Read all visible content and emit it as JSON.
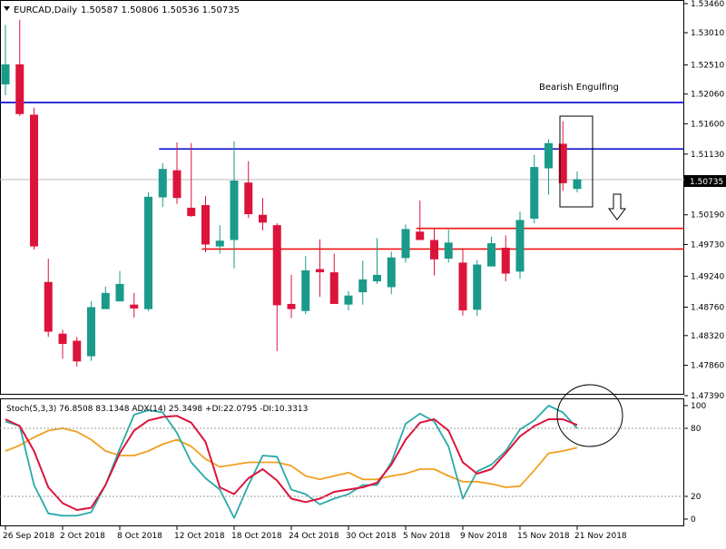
{
  "header": {
    "symbol_info": "EURCAD,Daily",
    "ohlc": "1.50587 1.50806 1.50536 1.50735"
  },
  "indicator_header": "Stoch(5,3,3) 76.8508 83.1348  ADX(14) 25.3498 +DI:22.0795 -DI:10.3313",
  "annotation_text": "Bearish Engulfing",
  "current_price_label": "1.50735",
  "colors": {
    "bull": "#1a9a8a",
    "bear": "#dc143c",
    "resistance": "#0000cc",
    "support": "#ee1111",
    "stoch_main": "#dc143c",
    "stoch_signal": "#2aaaaa",
    "adx": "#f0a020",
    "axis": "#000000",
    "grid_level": "#999999"
  },
  "chart_data": [
    {
      "type": "candlestick",
      "price_ticks": [
        "1.53460",
        "1.53010",
        "1.52510",
        "1.52060",
        "1.51600",
        "1.51130",
        "1.50735",
        "1.50190",
        "1.49730",
        "1.49240",
        "1.48760",
        "1.48320",
        "1.47860",
        "1.47390"
      ],
      "price_tick_values": [
        1.5346,
        1.5301,
        1.5251,
        1.5206,
        1.516,
        1.5113,
        1.50735,
        1.5019,
        1.4973,
        1.4924,
        1.4876,
        1.4832,
        1.4786,
        1.4739
      ],
      "ylim": [
        1.4739,
        1.5346
      ],
      "date_labels": [
        {
          "index": 0,
          "text": "26 Sep 2018"
        },
        {
          "index": 4,
          "text": "2 Oct 2018"
        },
        {
          "index": 8,
          "text": "8 Oct 2018"
        },
        {
          "index": 12,
          "text": "12 Oct 2018"
        },
        {
          "index": 16,
          "text": "18 Oct 2018"
        },
        {
          "index": 20,
          "text": "24 Oct 2018"
        },
        {
          "index": 24,
          "text": "30 Oct 2018"
        },
        {
          "index": 28,
          "text": "5 Nov 2018"
        },
        {
          "index": 32,
          "text": "9 Nov 2018"
        },
        {
          "index": 36,
          "text": "15 Nov 2018"
        },
        {
          "index": 40,
          "text": "21 Nov 2018"
        }
      ],
      "candles": [
        {
          "o": 1.5221,
          "h": 1.5313,
          "l": 1.5204,
          "c": 1.5252
        },
        {
          "o": 1.5252,
          "h": 1.5321,
          "l": 1.5172,
          "c": 1.5175
        },
        {
          "o": 1.5174,
          "h": 1.5185,
          "l": 1.4965,
          "c": 1.497
        },
        {
          "o": 1.4915,
          "h": 1.4951,
          "l": 1.483,
          "c": 1.4838
        },
        {
          "o": 1.4835,
          "h": 1.4841,
          "l": 1.4796,
          "c": 1.4819
        },
        {
          "o": 1.4824,
          "h": 1.483,
          "l": 1.4784,
          "c": 1.4792
        },
        {
          "o": 1.48,
          "h": 1.4885,
          "l": 1.4793,
          "c": 1.4876
        },
        {
          "o": 1.4873,
          "h": 1.4908,
          "l": 1.4873,
          "c": 1.4898
        },
        {
          "o": 1.4885,
          "h": 1.4932,
          "l": 1.4885,
          "c": 1.4912
        },
        {
          "o": 1.488,
          "h": 1.4898,
          "l": 1.486,
          "c": 1.4874
        },
        {
          "o": 1.4873,
          "h": 1.5054,
          "l": 1.487,
          "c": 1.5047
        },
        {
          "o": 1.5046,
          "h": 1.5099,
          "l": 1.5031,
          "c": 1.509
        },
        {
          "o": 1.5088,
          "h": 1.5131,
          "l": 1.5036,
          "c": 1.5045
        },
        {
          "o": 1.503,
          "h": 1.513,
          "l": 1.5016,
          "c": 1.5017
        },
        {
          "o": 1.5034,
          "h": 1.5048,
          "l": 1.4961,
          "c": 1.4973
        },
        {
          "o": 1.497,
          "h": 1.5003,
          "l": 1.4959,
          "c": 1.4979
        },
        {
          "o": 1.498,
          "h": 1.5133,
          "l": 1.4936,
          "c": 1.5072
        },
        {
          "o": 1.5069,
          "h": 1.5102,
          "l": 1.5014,
          "c": 1.502
        },
        {
          "o": 1.5019,
          "h": 1.5045,
          "l": 1.4995,
          "c": 1.5007
        },
        {
          "o": 1.5003,
          "h": 1.5006,
          "l": 1.4808,
          "c": 1.4879
        },
        {
          "o": 1.4881,
          "h": 1.4926,
          "l": 1.4859,
          "c": 1.4873
        },
        {
          "o": 1.487,
          "h": 1.4955,
          "l": 1.4865,
          "c": 1.4933
        },
        {
          "o": 1.4935,
          "h": 1.4981,
          "l": 1.4892,
          "c": 1.493
        },
        {
          "o": 1.493,
          "h": 1.4959,
          "l": 1.4883,
          "c": 1.4881
        },
        {
          "o": 1.488,
          "h": 1.4901,
          "l": 1.4871,
          "c": 1.4894
        },
        {
          "o": 1.4899,
          "h": 1.4948,
          "l": 1.488,
          "c": 1.4919
        },
        {
          "o": 1.4916,
          "h": 1.4983,
          "l": 1.4912,
          "c": 1.4926
        },
        {
          "o": 1.4907,
          "h": 1.4962,
          "l": 1.4896,
          "c": 1.4953
        },
        {
          "o": 1.4952,
          "h": 1.5004,
          "l": 1.4945,
          "c": 1.4997
        },
        {
          "o": 1.4993,
          "h": 1.5041,
          "l": 1.498,
          "c": 1.498
        },
        {
          "o": 1.498,
          "h": 1.4998,
          "l": 1.4925,
          "c": 1.495
        },
        {
          "o": 1.4951,
          "h": 1.4996,
          "l": 1.4945,
          "c": 1.4976
        },
        {
          "o": 1.4945,
          "h": 1.4967,
          "l": 1.4863,
          "c": 1.4871
        },
        {
          "o": 1.4872,
          "h": 1.4949,
          "l": 1.4862,
          "c": 1.4942
        },
        {
          "o": 1.4939,
          "h": 1.4985,
          "l": 1.4941,
          "c": 1.4975
        },
        {
          "o": 1.4968,
          "h": 1.4987,
          "l": 1.4916,
          "c": 1.4928
        },
        {
          "o": 1.4931,
          "h": 1.5024,
          "l": 1.492,
          "c": 1.5011
        },
        {
          "o": 1.5013,
          "h": 1.5112,
          "l": 1.5006,
          "c": 1.5093
        },
        {
          "o": 1.5091,
          "h": 1.5136,
          "l": 1.505,
          "c": 1.513
        },
        {
          "o": 1.5129,
          "h": 1.5164,
          "l": 1.5056,
          "c": 1.5068
        },
        {
          "o": 1.5059,
          "h": 1.5086,
          "l": 1.5054,
          "c": 1.5074
        }
      ],
      "levels": [
        {
          "name": "resistance-major",
          "price": 1.5193,
          "color": "#0000cc",
          "from_index": 0
        },
        {
          "name": "resistance-minor",
          "price": 1.5121,
          "color": "#0000cc",
          "from_index": 11
        },
        {
          "name": "support-upper",
          "price": 1.4998,
          "color": "#ee1111",
          "from_index": 29
        },
        {
          "name": "support-lower",
          "price": 1.4966,
          "color": "#ee1111",
          "from_index": 14
        }
      ],
      "current_price": 1.50735
    },
    {
      "type": "line",
      "ticks": [
        "100",
        "80",
        "20",
        "0"
      ],
      "tick_values": [
        100,
        80,
        20,
        0
      ],
      "ylim": [
        0,
        100
      ],
      "levels": [
        80,
        20
      ],
      "series": [
        {
          "name": "Stoch(5,3,3)",
          "color": "#dc143c",
          "values": [
            88,
            82,
            60,
            28,
            14,
            8,
            10,
            30,
            58,
            78,
            87,
            90,
            91,
            85,
            68,
            28,
            22,
            36,
            44,
            34,
            18,
            15,
            18,
            24,
            26,
            28,
            32,
            48,
            70,
            85,
            88,
            78,
            50,
            40,
            44,
            58,
            73,
            82,
            88,
            88,
            83
          ]
        },
        {
          "name": "Stoch signal",
          "color": "#2aaaaa",
          "values": [
            86,
            82,
            30,
            5,
            3,
            3,
            6,
            30,
            62,
            92,
            96,
            94,
            76,
            50,
            36,
            26,
            1,
            30,
            56,
            55,
            26,
            22,
            13,
            18,
            22,
            30,
            30,
            50,
            84,
            93,
            86,
            64,
            18,
            42,
            48,
            60,
            79,
            87,
            100,
            94,
            80
          ]
        },
        {
          "name": "ADX(14)",
          "color": "#f0a020",
          "values": [
            60,
            65,
            72,
            78,
            80,
            77,
            70,
            60,
            56,
            56,
            60,
            66,
            70,
            64,
            53,
            46,
            48,
            50,
            50,
            50,
            47,
            38,
            35,
            38,
            41,
            35,
            35,
            38,
            40,
            44,
            44,
            38,
            33,
            33,
            31,
            28,
            29,
            43,
            58,
            60,
            63
          ]
        }
      ]
    }
  ]
}
